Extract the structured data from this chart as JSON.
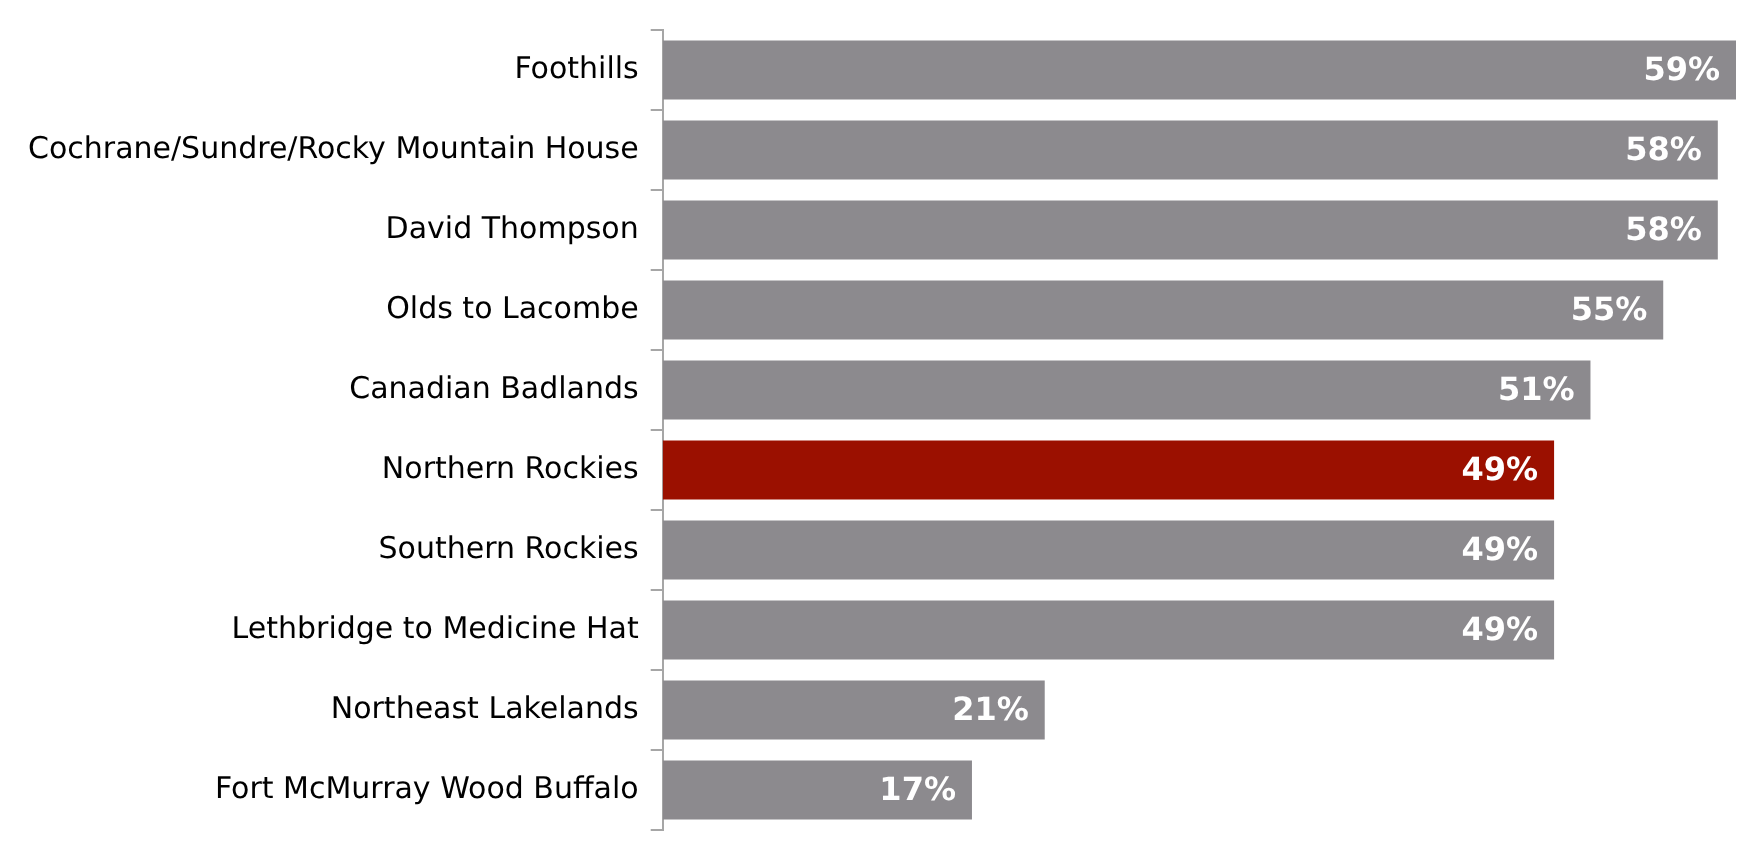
{
  "chart_data": {
    "type": "bar",
    "orientation": "horizontal",
    "categories": [
      "Foothills",
      "Cochrane/Sundre/Rocky Mountain House",
      "David Thompson",
      "Olds to Lacombe",
      "Canadian Badlands",
      "Northern Rockies",
      "Southern Rockies",
      "Lethbridge to Medicine Hat",
      "Northeast Lakelands",
      "Fort McMurray Wood Buffalo"
    ],
    "values": [
      59,
      58,
      58,
      55,
      51,
      49,
      49,
      49,
      21,
      17
    ],
    "value_labels": [
      "59%",
      "58%",
      "58%",
      "55%",
      "51%",
      "49%",
      "49%",
      "49%",
      "21%",
      "17%"
    ],
    "colors": [
      "#8c8a8e",
      "#8c8a8e",
      "#8c8a8e",
      "#8c8a8e",
      "#8c8a8e",
      "#9b1000",
      "#8c8a8e",
      "#8c8a8e",
      "#8c8a8e",
      "#8c8a8e"
    ],
    "legend": false
  }
}
